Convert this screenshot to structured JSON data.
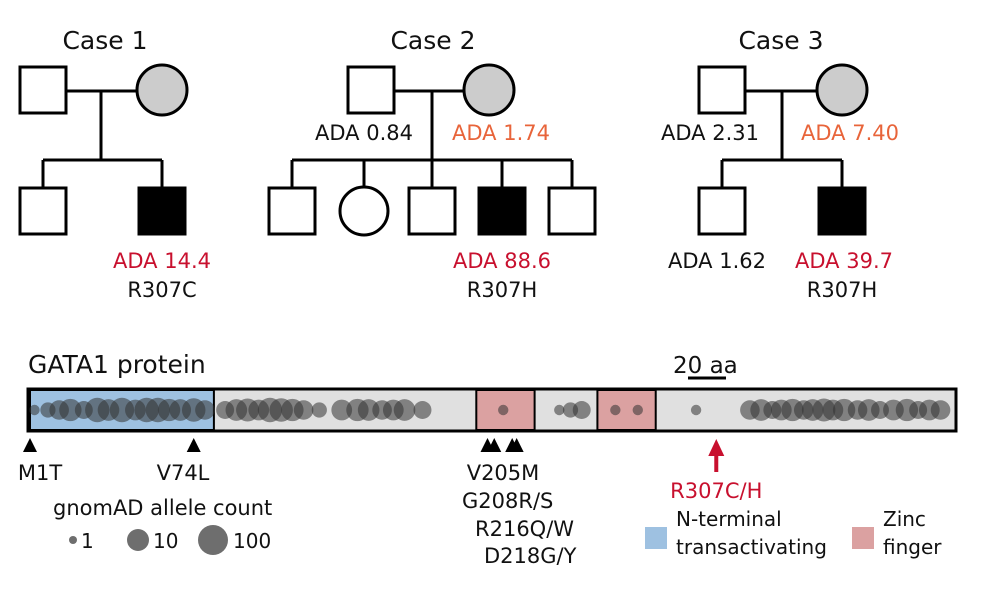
{
  "colors": {
    "red": "#c8102e",
    "orange": "#e8643a",
    "affected": "#000000",
    "carrier_female": "#cccccc",
    "n_terminal_domain": "#9ec1e1",
    "zinc_finger_domain": "#dba1a1",
    "protein_body": "#e0e0e0"
  },
  "pedigrees": [
    {
      "title": "Case 1",
      "mother_label": "",
      "father_label": "",
      "children": [
        {
          "sex": "male",
          "affected": false,
          "ada": "",
          "variant": ""
        },
        {
          "sex": "male",
          "affected": true,
          "ada": "ADA 14.4",
          "variant": "R307C"
        }
      ]
    },
    {
      "title": "Case 2",
      "father_label": "ADA 0.84",
      "mother_label": "ADA 1.74",
      "children": [
        {
          "sex": "male",
          "affected": false,
          "ada": "",
          "variant": ""
        },
        {
          "sex": "female",
          "affected": false,
          "ada": "",
          "variant": ""
        },
        {
          "sex": "male",
          "affected": false,
          "ada": "",
          "variant": ""
        },
        {
          "sex": "male",
          "affected": true,
          "ada": "ADA 88.6",
          "variant": "R307H"
        },
        {
          "sex": "male",
          "affected": false,
          "ada": "",
          "variant": ""
        }
      ]
    },
    {
      "title": "Case 3",
      "father_label": "ADA 2.31",
      "mother_label": "ADA 7.40",
      "children": [
        {
          "sex": "male",
          "affected": false,
          "ada": "ADA 1.62",
          "variant": ""
        },
        {
          "sex": "male",
          "affected": true,
          "ada": "ADA 39.7",
          "variant": "R307H"
        }
      ]
    }
  ],
  "protein": {
    "title": "GATA1 protein",
    "scale_label": "20 aa",
    "length_aa": 413,
    "domains": [
      {
        "name": "N-terminal transactivating",
        "start": 1,
        "end": 83,
        "type": "nterm"
      },
      {
        "name": "Zinc finger",
        "start": 200,
        "end": 226,
        "type": "zf"
      },
      {
        "name": "Zinc finger",
        "start": 254,
        "end": 280,
        "type": "zf"
      }
    ],
    "mutations": [
      {
        "label": "M1T",
        "position": 1
      },
      {
        "label": "V74L",
        "position": 74
      },
      {
        "label": "V205M",
        "position": 205
      },
      {
        "label": "G208R/S",
        "position": 208
      },
      {
        "label": "R216Q/W",
        "position": 216
      },
      {
        "label": "D218G/Y",
        "position": 218
      }
    ],
    "highlight_mutation": {
      "label": "R307C/H",
      "position": 307
    },
    "variants": [
      {
        "pos": 3,
        "count": 3
      },
      {
        "pos": 9,
        "count": 10
      },
      {
        "pos": 14,
        "count": 30
      },
      {
        "pos": 19,
        "count": 60
      },
      {
        "pos": 25,
        "count": 20
      },
      {
        "pos": 31,
        "count": 100
      },
      {
        "pos": 36,
        "count": 50
      },
      {
        "pos": 42,
        "count": 100
      },
      {
        "pos": 48,
        "count": 40
      },
      {
        "pos": 53,
        "count": 100
      },
      {
        "pos": 58,
        "count": 100
      },
      {
        "pos": 63,
        "count": 60
      },
      {
        "pos": 68,
        "count": 50
      },
      {
        "pos": 74,
        "count": 80
      },
      {
        "pos": 79,
        "count": 30
      },
      {
        "pos": 88,
        "count": 20
      },
      {
        "pos": 93,
        "count": 50
      },
      {
        "pos": 98,
        "count": 70
      },
      {
        "pos": 103,
        "count": 40
      },
      {
        "pos": 108,
        "count": 100
      },
      {
        "pos": 113,
        "count": 80
      },
      {
        "pos": 118,
        "count": 60
      },
      {
        "pos": 123,
        "count": 30
      },
      {
        "pos": 130,
        "count": 10
      },
      {
        "pos": 140,
        "count": 40
      },
      {
        "pos": 147,
        "count": 60
      },
      {
        "pos": 152,
        "count": 50
      },
      {
        "pos": 158,
        "count": 30
      },
      {
        "pos": 163,
        "count": 40
      },
      {
        "pos": 168,
        "count": 50
      },
      {
        "pos": 176,
        "count": 20
      },
      {
        "pos": 212,
        "count": 3
      },
      {
        "pos": 237,
        "count": 3
      },
      {
        "pos": 242,
        "count": 10
      },
      {
        "pos": 247,
        "count": 20
      },
      {
        "pos": 262,
        "count": 3
      },
      {
        "pos": 272,
        "count": 3
      },
      {
        "pos": 298,
        "count": 3
      },
      {
        "pos": 322,
        "count": 30
      },
      {
        "pos": 327,
        "count": 50
      },
      {
        "pos": 332,
        "count": 20
      },
      {
        "pos": 336,
        "count": 40
      },
      {
        "pos": 341,
        "count": 60
      },
      {
        "pos": 346,
        "count": 30
      },
      {
        "pos": 350,
        "count": 50
      },
      {
        "pos": 355,
        "count": 70
      },
      {
        "pos": 359,
        "count": 40
      },
      {
        "pos": 364,
        "count": 60
      },
      {
        "pos": 370,
        "count": 30
      },
      {
        "pos": 375,
        "count": 50
      },
      {
        "pos": 380,
        "count": 20
      },
      {
        "pos": 386,
        "count": 40
      },
      {
        "pos": 392,
        "count": 60
      },
      {
        "pos": 397,
        "count": 20
      },
      {
        "pos": 402,
        "count": 40
      },
      {
        "pos": 407,
        "count": 30
      }
    ]
  },
  "legend": {
    "title": "gnomAD allele count",
    "sizes": [
      {
        "label": "1",
        "count": 1
      },
      {
        "label": "10",
        "count": 10
      },
      {
        "label": "100",
        "count": 100
      }
    ],
    "nterm_line1": "N-terminal",
    "nterm_line2": "transactivating",
    "zf_line1": "Zinc",
    "zf_line2": "finger"
  }
}
